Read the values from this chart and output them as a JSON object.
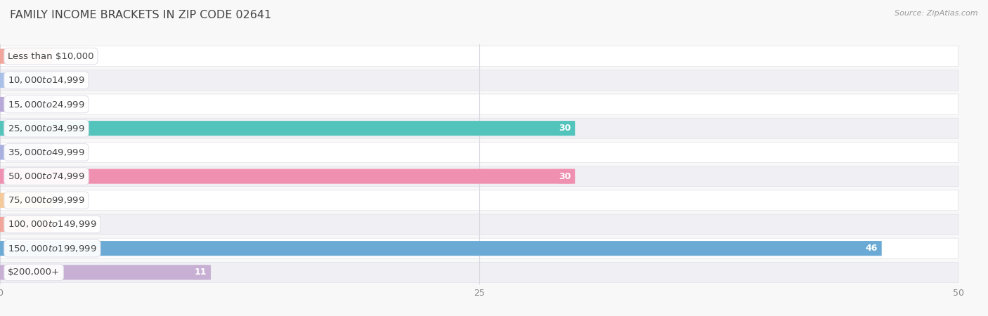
{
  "title": "Family Income Brackets in Zip Code 02641",
  "source": "Source: ZipAtlas.com",
  "categories": [
    "Less than $10,000",
    "$10,000 to $14,999",
    "$15,000 to $24,999",
    "$25,000 to $34,999",
    "$35,000 to $49,999",
    "$50,000 to $74,999",
    "$75,000 to $99,999",
    "$100,000 to $149,999",
    "$150,000 to $199,999",
    "$200,000+"
  ],
  "values": [
    0,
    0,
    0,
    30,
    0,
    30,
    0,
    0,
    46,
    11
  ],
  "bar_colors": [
    "#f2a59a",
    "#a8bfe8",
    "#b8a8d8",
    "#52c4bc",
    "#a8b0e0",
    "#f090b0",
    "#f5ca98",
    "#f2a59a",
    "#6aaad4",
    "#c8b0d4"
  ],
  "bar_height": 0.62,
  "xlim": [
    0,
    50
  ],
  "xticks": [
    0,
    25,
    50
  ],
  "bg_color": "#f8f8f8",
  "row_colors": [
    "#ffffff",
    "#f0f0f4"
  ],
  "row_border_color": "#e0e0e8",
  "grid_color": "#d8d8e0",
  "title_fontsize": 11.5,
  "label_fontsize": 9.5,
  "value_fontsize": 9,
  "tick_fontsize": 9,
  "title_color": "#444444",
  "label_text_color": "#444444",
  "value_text_color_light": "#ffffff",
  "value_text_color_dark": "#666666",
  "source_color": "#999999"
}
